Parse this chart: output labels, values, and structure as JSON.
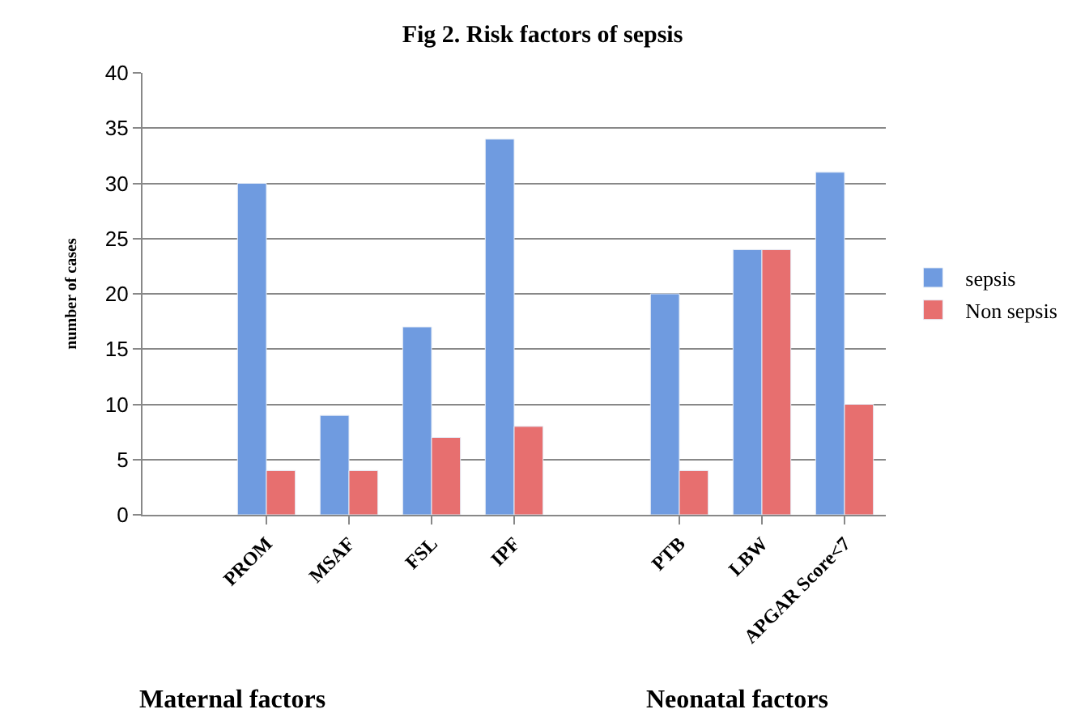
{
  "chart_data": {
    "type": "bar",
    "title": "Fig 2. Risk factors of sepsis",
    "ylabel": "number of cases",
    "categories": [
      null,
      "PROM",
      "MSAF",
      "FSL",
      "IPF",
      null,
      "PTB",
      "LBW",
      "APGAR Score<7"
    ],
    "series": [
      {
        "name": "sepsis",
        "color": "#6f9be0",
        "values": [
          null,
          30,
          9,
          17,
          34,
          null,
          20,
          24,
          31
        ]
      },
      {
        "name": "Non sepsis",
        "color": "#e76f6f",
        "values": [
          null,
          4,
          4,
          7,
          8,
          null,
          4,
          24,
          10
        ]
      }
    ],
    "ylim": [
      0,
      40
    ],
    "yticks": [
      0,
      5,
      10,
      15,
      20,
      25,
      30,
      35,
      40
    ],
    "grid": "y",
    "legend": "right",
    "annotations": [
      "Maternal factors",
      "Neonatal factors"
    ]
  }
}
